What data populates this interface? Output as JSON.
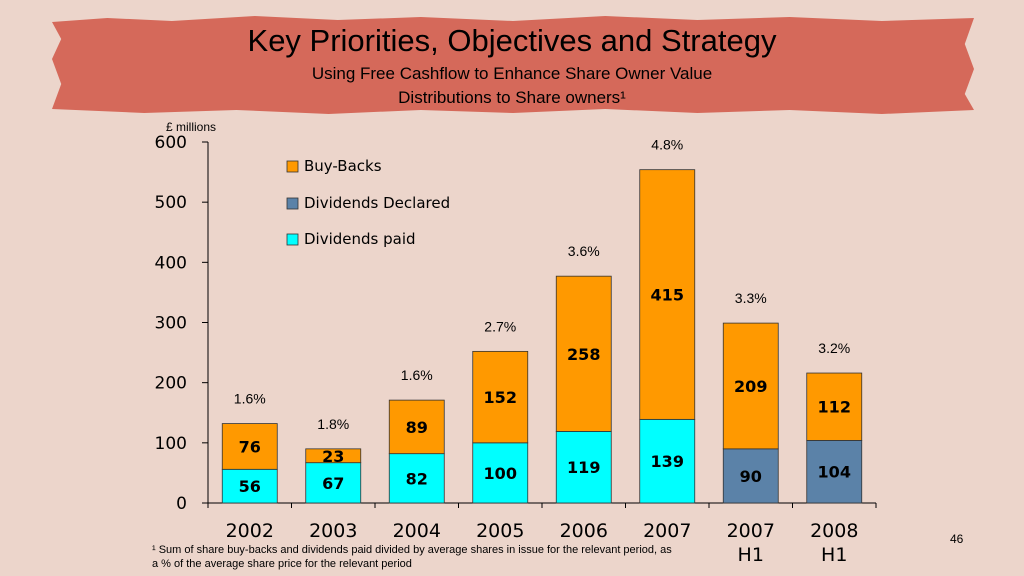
{
  "header": {
    "title": "Key Priorities, Objectives and Strategy",
    "subtitle_line1": "Using Free Cashflow to Enhance Share Owner Value",
    "subtitle_line2": "Distributions to Share owners¹"
  },
  "footnote": "¹ Sum of share buy-backs and dividends paid divided by average shares in issue for the relevant period, as a % of the average share price for the relevant period",
  "page_number": "46",
  "colors": {
    "banner": "#d5695a",
    "background": "#ecd5cb",
    "buy_backs": "#ff9900",
    "dividends_declared": "#5b82a8",
    "dividends_paid": "#00ffff"
  },
  "chart_data": {
    "type": "bar",
    "stacked": true,
    "unit_label": "£ millions",
    "ylim": [
      0,
      600
    ],
    "yticks": [
      0,
      100,
      200,
      300,
      400,
      500,
      600
    ],
    "grid": false,
    "legend_position": "top-left",
    "categories": [
      [
        "2002"
      ],
      [
        "2003"
      ],
      [
        "2004"
      ],
      [
        "2005"
      ],
      [
        "2006"
      ],
      [
        "2007"
      ],
      [
        "2007",
        "H1"
      ],
      [
        "2008",
        "H1"
      ]
    ],
    "series": [
      {
        "name": "Buy-Backs",
        "color": "#ff9900",
        "values": [
          76,
          23,
          89,
          152,
          258,
          415,
          209,
          112
        ]
      },
      {
        "name": "Dividends Declared",
        "color": "#5b82a8",
        "values": [
          null,
          null,
          null,
          null,
          null,
          null,
          90,
          104
        ]
      },
      {
        "name": "Dividends paid",
        "color": "#00ffff",
        "values": [
          56,
          67,
          82,
          100,
          119,
          139,
          null,
          null
        ]
      }
    ],
    "legend_order": [
      "Buy-Backs",
      "Dividends Declared",
      "Dividends paid"
    ],
    "annotations": [
      "1.6%",
      "1.8%",
      "1.6%",
      "2.7%",
      "3.6%",
      "4.8%",
      "3.3%",
      "3.2%"
    ]
  }
}
